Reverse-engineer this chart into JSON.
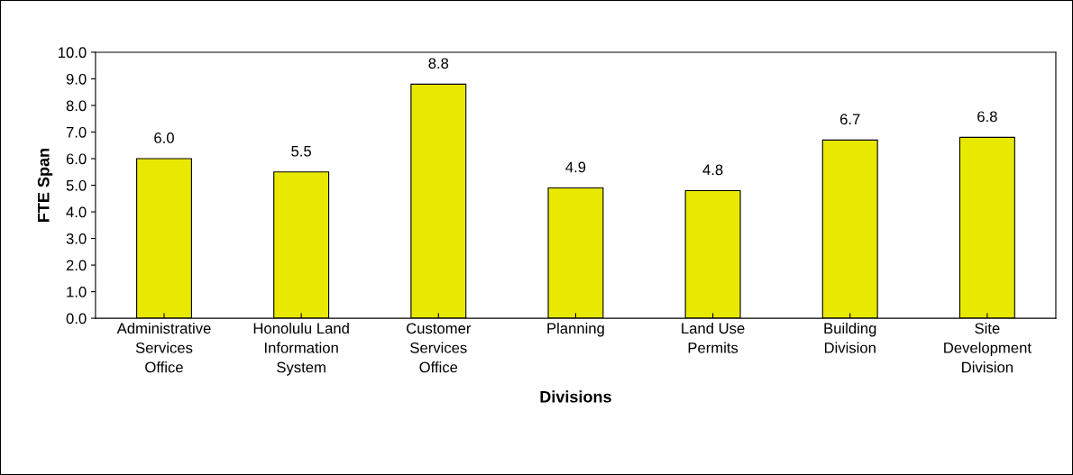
{
  "chart_data": {
    "type": "bar",
    "xlabel": "Divisions",
    "ylabel": "FTE Span",
    "categories": [
      "Administrative Services Office",
      "Honolulu Land Information System",
      "Customer Services Office",
      "Planning",
      "Land Use Permits",
      "Building Division",
      "Site Development Division"
    ],
    "values": [
      6.0,
      5.5,
      8.8,
      4.9,
      4.8,
      6.7,
      6.8
    ],
    "color": "#e8e800",
    "ylim": [
      0,
      10
    ],
    "yticks": [
      {
        "value": 0,
        "label": "0.0"
      },
      {
        "value": 1,
        "label": "1.0"
      },
      {
        "value": 2,
        "label": "2.0"
      },
      {
        "value": 3,
        "label": "3.0"
      },
      {
        "value": 4,
        "label": "4.0"
      },
      {
        "value": 5,
        "label": "5.0"
      },
      {
        "value": 6,
        "label": "6.0"
      },
      {
        "value": 7,
        "label": "7.0"
      },
      {
        "value": 8,
        "label": "8.0"
      },
      {
        "value": 9,
        "label": "9.0"
      },
      {
        "value": 10,
        "label": "10.0"
      }
    ],
    "value_labels": [
      "6.0",
      "5.5",
      "8.8",
      "4.9",
      "4.8",
      "6.7",
      "6.8"
    ],
    "grid": false,
    "legend": false
  }
}
